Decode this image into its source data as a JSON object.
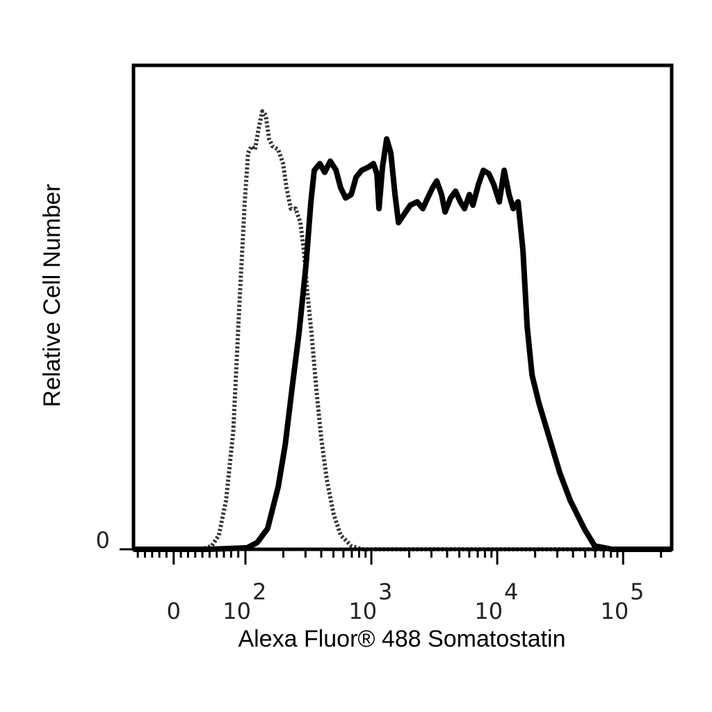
{
  "chart_data": {
    "type": "line",
    "x_label": "Alexa Fluor® 488 Somatostatin",
    "y_label": "Relative Cell Number",
    "xscale": "biexponential",
    "xlim": [
      -56,
      243000
    ],
    "ylim": [
      0,
      100
    ],
    "xticks": [
      0,
      {
        "value": 100,
        "label": "10",
        "exponent": "2"
      },
      {
        "value": 1000,
        "label": "10",
        "exponent": "3"
      },
      {
        "value": 10000,
        "label": "10",
        "exponent": "4"
      },
      {
        "value": 100000,
        "label": "10",
        "exponent": "5"
      }
    ],
    "xminorticks": [
      -50,
      -40,
      -30,
      -20,
      -10,
      10,
      20,
      30,
      40,
      50,
      60,
      70,
      80,
      90,
      200,
      300,
      400,
      500,
      600,
      700,
      800,
      900,
      2000,
      3000,
      4000,
      5000,
      6000,
      7000,
      8000,
      9000,
      20000,
      30000,
      40000,
      50000,
      60000,
      70000,
      80000,
      90000,
      200000
    ],
    "yticks": [
      0
    ],
    "series": [
      {
        "color": "#333333",
        "style": "dotted",
        "x": [
          -56,
          39,
          53,
          63,
          73,
          83,
          92,
          99,
          105,
          112,
          119,
          127,
          136,
          145,
          154,
          164,
          182,
          199,
          212,
          229,
          250,
          273,
          291,
          310,
          335,
          366,
          400,
          443,
          503,
          571,
          692,
          837,
          243000
        ],
        "values": [
          0,
          0,
          0.7,
          2.9,
          10.1,
          24.4,
          51.7,
          71.8,
          81.9,
          83.3,
          82.6,
          86.8,
          90.5,
          89.7,
          84.8,
          83.3,
          82.6,
          79.7,
          74.7,
          70.4,
          70.4,
          67.5,
          61.8,
          53.2,
          44.5,
          33.0,
          23.0,
          14.4,
          7.2,
          2.9,
          0.7,
          0,
          0
        ]
      },
      {
        "color": "#000000",
        "style": "solid",
        "x": [
          -56,
          49,
          103,
          124,
          150,
          182,
          207,
          234,
          266,
          303,
          331,
          352,
          390,
          426,
          472,
          523,
          571,
          625,
          692,
          756,
          837,
          951,
          1040,
          1107,
          1151,
          1226,
          1324,
          1429,
          1542,
          1642,
          1795,
          2037,
          2315,
          2563,
          2803,
          3064,
          3306,
          3613,
          3853,
          4266,
          4665,
          5097,
          5500,
          6012,
          6408,
          7096,
          7759,
          8586,
          9384,
          10390,
          11360,
          12410,
          13400,
          14650,
          16010,
          17290,
          18900,
          21440,
          25940,
          31400,
          38000,
          49070,
          59370,
          81640,
          243000
        ],
        "values": [
          0,
          0,
          0.3,
          1.4,
          4.3,
          12.9,
          21.6,
          33.0,
          44.5,
          58.9,
          71.8,
          78.3,
          79.7,
          77.9,
          80.2,
          78.4,
          74.7,
          72.6,
          73.3,
          76.9,
          78.3,
          79.0,
          79.7,
          77.6,
          70.4,
          79.0,
          84.8,
          81.9,
          73.3,
          67.5,
          69.0,
          71.1,
          71.8,
          70.4,
          72.6,
          74.7,
          76.1,
          73.3,
          69.7,
          72.6,
          74.0,
          71.8,
          70.4,
          73.3,
          71.1,
          75.4,
          78.3,
          77.6,
          75.4,
          71.8,
          78.3,
          73.3,
          70.4,
          71.8,
          61.8,
          46.0,
          36.0,
          30.2,
          23.0,
          15.8,
          10.1,
          4.3,
          0.7,
          0,
          0
        ]
      }
    ]
  }
}
